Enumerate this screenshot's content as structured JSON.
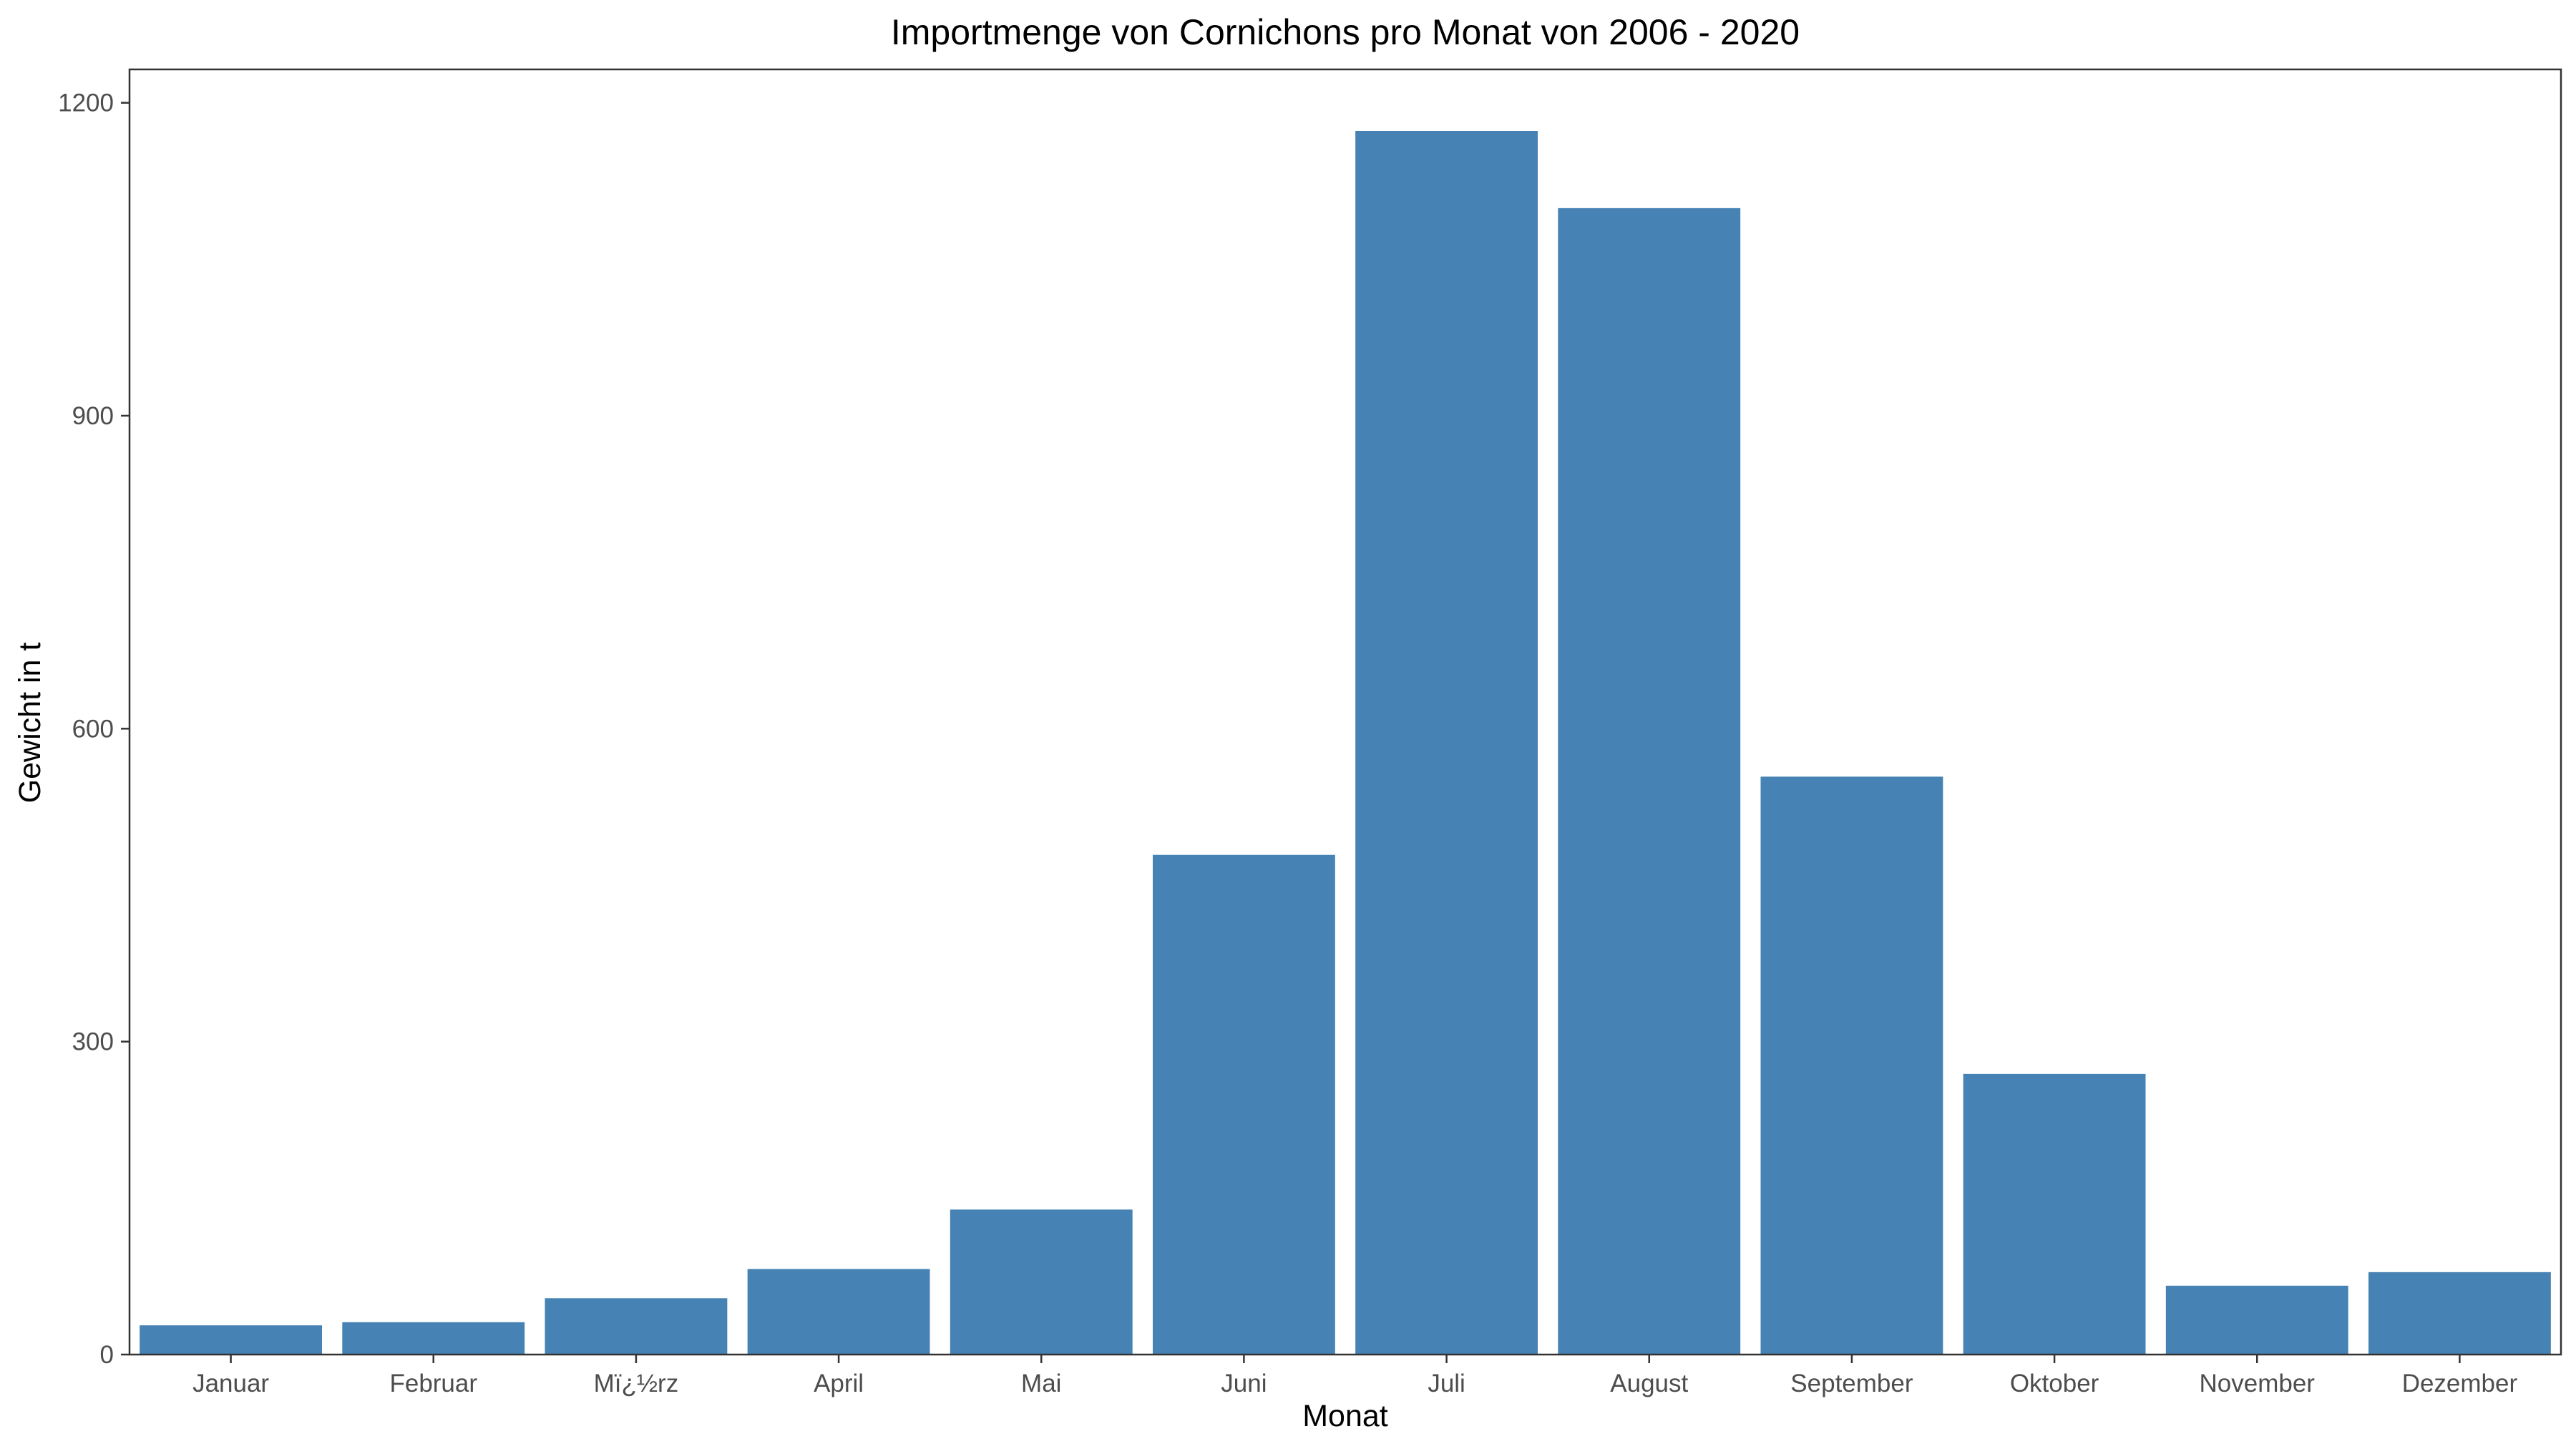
{
  "chart_data": {
    "type": "bar",
    "title": "Importmenge von Cornichons pro Monat von 2006 - 2020",
    "xlabel": "Monat",
    "ylabel": "Gewicht in t",
    "categories": [
      "Januar",
      "Februar",
      "Mï¿½rz",
      "April",
      "Mai",
      "Juni",
      "Juli",
      "August",
      "September",
      "Oktober",
      "November",
      "Dezember"
    ],
    "values": [
      28,
      31,
      54,
      82,
      139,
      479,
      1173,
      1099,
      554,
      269,
      66,
      79
    ],
    "y_ticks": [
      0,
      300,
      600,
      900,
      1200
    ],
    "ylim": [
      0,
      1232
    ],
    "grid": false,
    "legend": "none",
    "bar_color": "#4682b4"
  }
}
